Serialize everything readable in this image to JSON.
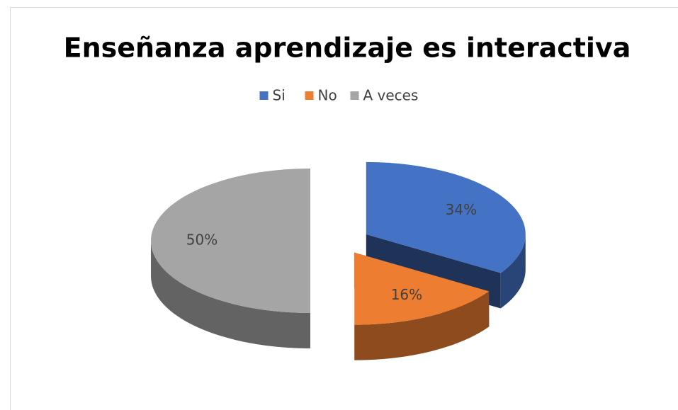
{
  "chart_data": {
    "type": "pie",
    "title": "Enseñanza aprendizaje es interactiva",
    "categories": [
      "Si",
      "No",
      "A veces"
    ],
    "values": [
      34,
      16,
      50
    ],
    "value_labels": [
      "34%",
      "16%",
      "50%"
    ],
    "colors": [
      "#4472c4",
      "#ed7d31",
      "#a5a5a5"
    ],
    "legend": "top"
  }
}
